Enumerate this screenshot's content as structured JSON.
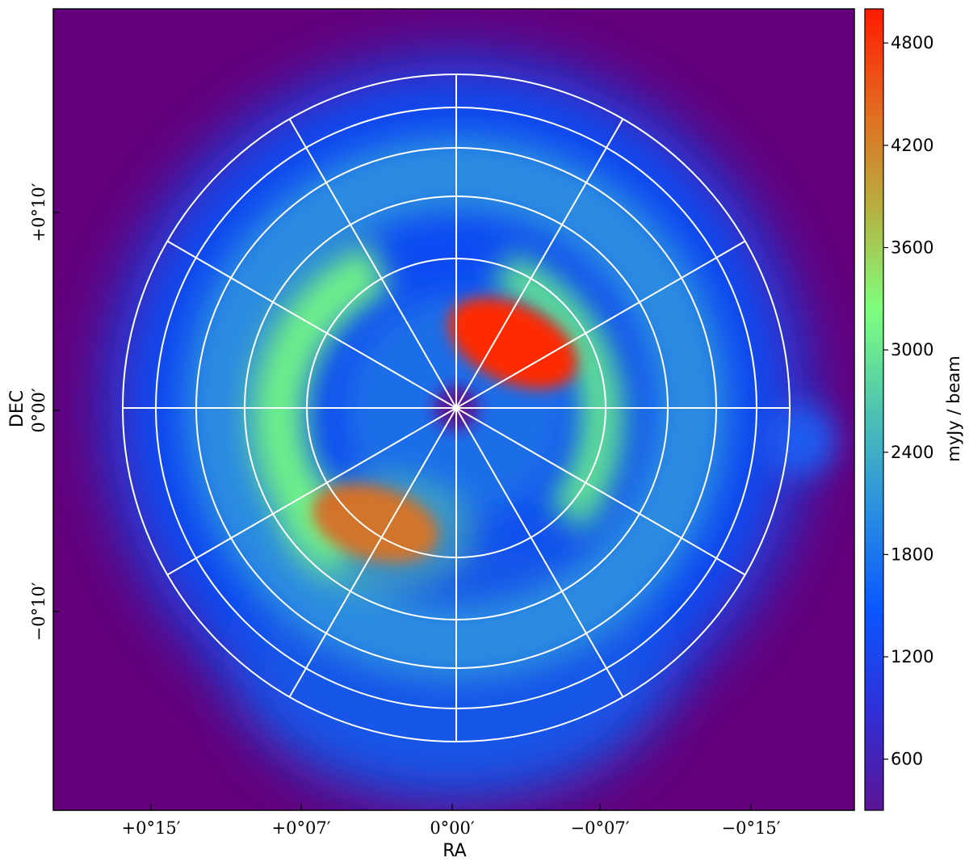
{
  "chart_data": {
    "type": "heatmap",
    "title": "",
    "xlabel": "RA",
    "ylabel": "DEC",
    "x_ticks": [
      "+0°15′",
      "+0°07′",
      "0°00′",
      "−0°07′",
      "−0°15′"
    ],
    "y_ticks": [
      "+0°10′",
      "0°00′",
      "−0°10′"
    ],
    "colorbar": {
      "label": "myJy / beam",
      "ticks": [
        600,
        1200,
        1800,
        2400,
        3000,
        3600,
        4200,
        4800
      ],
      "range": [
        300,
        5000
      ],
      "colormap": [
        "#5a1494",
        "#2f30d8",
        "#0a57ff",
        "#2a8fe0",
        "#4fc4b0",
        "#7eff7e",
        "#b7b040",
        "#e46a20",
        "#ff1a00"
      ]
    },
    "background_color": "#64007c",
    "grid": true,
    "grid_color": "#ffffff",
    "overlay": "polar grid: 5 concentric circles and 12 radial spokes every 30°",
    "features": [
      {
        "description": "bright red lobe",
        "x_offset_arcmin": -3.5,
        "y_offset_arcmin": 3.5,
        "peak": 5000
      },
      {
        "description": "bright red lobe",
        "x_offset_arcmin": 4.5,
        "y_offset_arcmin": -6.0,
        "peak": 5000
      },
      {
        "description": "green ring",
        "radius_arcmin": 8,
        "level": 3000
      },
      {
        "description": "blue ring",
        "radius_arcmin": 14,
        "level": 1400
      }
    ]
  }
}
